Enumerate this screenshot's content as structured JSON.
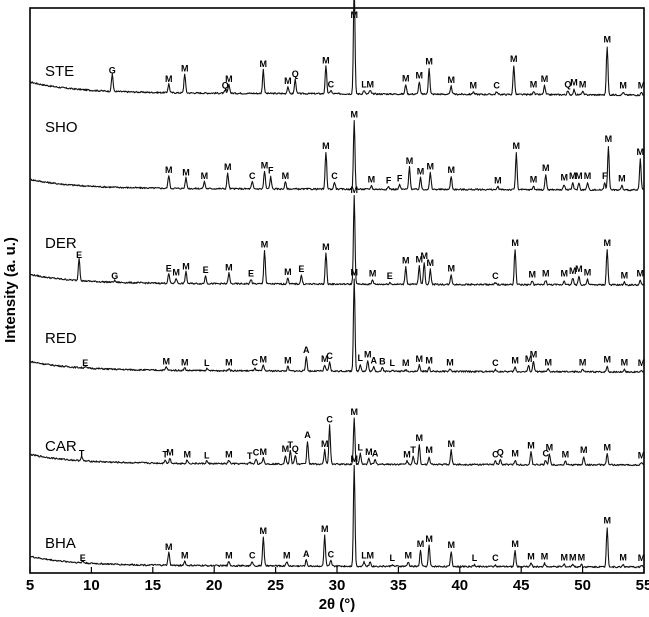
{
  "chart_data": {
    "type": "line",
    "xlabel": "2θ (°)",
    "ylabel": "Intensity (a. u.)",
    "xlim": [
      5,
      55
    ],
    "x_ticks": [
      5,
      10,
      15,
      20,
      25,
      30,
      35,
      40,
      45,
      50,
      55
    ],
    "grid": false,
    "legend": "none",
    "series": [
      {
        "name": "STE",
        "baseline": 0.12,
        "tilt": 0.07,
        "peaks": [
          {
            "x": 11.7,
            "h": 0.2,
            "label": "G"
          },
          {
            "x": 16.3,
            "h": 0.1,
            "label": "M"
          },
          {
            "x": 17.6,
            "h": 0.22,
            "label": "M"
          },
          {
            "x": 20.9,
            "h": 0.03,
            "label": "Q"
          },
          {
            "x": 21.2,
            "h": 0.1,
            "label": "M"
          },
          {
            "x": 24.0,
            "h": 0.27,
            "label": "M"
          },
          {
            "x": 26.0,
            "h": 0.08,
            "label": "M"
          },
          {
            "x": 26.6,
            "h": 0.16,
            "label": "Q"
          },
          {
            "x": 29.1,
            "h": 0.31,
            "label": "M"
          },
          {
            "x": 29.5,
            "h": 0.04,
            "label": "C"
          },
          {
            "x": 31.4,
            "h": 1.25,
            "label": "M"
          },
          {
            "x": 32.2,
            "h": 0.04,
            "label": "L"
          },
          {
            "x": 32.7,
            "h": 0.04,
            "label": "M"
          },
          {
            "x": 35.6,
            "h": 0.11,
            "label": "M"
          },
          {
            "x": 36.7,
            "h": 0.14,
            "label": "M"
          },
          {
            "x": 37.5,
            "h": 0.3,
            "label": "M"
          },
          {
            "x": 39.3,
            "h": 0.09,
            "label": "M"
          },
          {
            "x": 41.1,
            "h": 0.03,
            "label": "M"
          },
          {
            "x": 43.0,
            "h": 0.03,
            "label": "C"
          },
          {
            "x": 44.4,
            "h": 0.33,
            "label": "M"
          },
          {
            "x": 46.0,
            "h": 0.04,
            "label": "M"
          },
          {
            "x": 46.9,
            "h": 0.1,
            "label": "M"
          },
          {
            "x": 48.8,
            "h": 0.04,
            "label": "Q"
          },
          {
            "x": 49.3,
            "h": 0.06,
            "label": "M"
          },
          {
            "x": 50.0,
            "h": 0.04,
            "label": "M"
          },
          {
            "x": 52.0,
            "h": 0.55,
            "label": "M"
          },
          {
            "x": 53.3,
            "h": 0.03,
            "label": "M"
          },
          {
            "x": 54.8,
            "h": 0.03,
            "label": "M"
          }
        ]
      },
      {
        "name": "SHO",
        "baseline": 0.1,
        "tilt": 0.05,
        "peaks": [
          {
            "x": 16.3,
            "h": 0.15,
            "label": "M"
          },
          {
            "x": 17.7,
            "h": 0.12,
            "label": "M"
          },
          {
            "x": 19.2,
            "h": 0.08,
            "label": "M"
          },
          {
            "x": 21.1,
            "h": 0.18,
            "label": "M"
          },
          {
            "x": 23.1,
            "h": 0.08,
            "label": "C"
          },
          {
            "x": 24.1,
            "h": 0.2,
            "label": "M"
          },
          {
            "x": 24.6,
            "h": 0.14,
            "label": "F"
          },
          {
            "x": 25.8,
            "h": 0.08,
            "label": "M"
          },
          {
            "x": 29.1,
            "h": 0.42,
            "label": "M"
          },
          {
            "x": 29.8,
            "h": 0.08,
            "label": "C"
          },
          {
            "x": 31.4,
            "h": 0.78,
            "label": "M"
          },
          {
            "x": 32.8,
            "h": 0.04,
            "label": "M"
          },
          {
            "x": 34.2,
            "h": 0.03,
            "label": "F"
          },
          {
            "x": 35.1,
            "h": 0.05,
            "label": "F"
          },
          {
            "x": 35.9,
            "h": 0.25,
            "label": "M"
          },
          {
            "x": 36.8,
            "h": 0.13,
            "label": "M"
          },
          {
            "x": 37.6,
            "h": 0.19,
            "label": "M"
          },
          {
            "x": 39.3,
            "h": 0.15,
            "label": "M"
          },
          {
            "x": 43.1,
            "h": 0.03,
            "label": "M"
          },
          {
            "x": 44.6,
            "h": 0.42,
            "label": "M"
          },
          {
            "x": 46.0,
            "h": 0.04,
            "label": "M"
          },
          {
            "x": 47.0,
            "h": 0.17,
            "label": "M"
          },
          {
            "x": 48.5,
            "h": 0.06,
            "label": "M"
          },
          {
            "x": 49.2,
            "h": 0.08,
            "label": "M"
          },
          {
            "x": 49.7,
            "h": 0.08,
            "label": "M"
          },
          {
            "x": 50.4,
            "h": 0.08,
            "label": "M"
          },
          {
            "x": 51.8,
            "h": 0.08,
            "label": "F"
          },
          {
            "x": 52.1,
            "h": 0.5,
            "label": "M"
          },
          {
            "x": 53.2,
            "h": 0.05,
            "label": "M"
          },
          {
            "x": 54.7,
            "h": 0.35,
            "label": "M"
          }
        ]
      },
      {
        "name": "DER",
        "baseline": 0.1,
        "tilt": 0.05,
        "peaks": [
          {
            "x": 9.0,
            "h": 0.26,
            "label": "E"
          },
          {
            "x": 11.9,
            "h": 0.02,
            "label": "G"
          },
          {
            "x": 16.3,
            "h": 0.11,
            "label": "E"
          },
          {
            "x": 16.9,
            "h": 0.06,
            "label": "M"
          },
          {
            "x": 17.7,
            "h": 0.13,
            "label": "M"
          },
          {
            "x": 19.3,
            "h": 0.09,
            "label": "E"
          },
          {
            "x": 21.2,
            "h": 0.12,
            "label": "M"
          },
          {
            "x": 23.0,
            "h": 0.05,
            "label": "E"
          },
          {
            "x": 24.1,
            "h": 0.38,
            "label": "M"
          },
          {
            "x": 26.0,
            "h": 0.07,
            "label": "M"
          },
          {
            "x": 27.1,
            "h": 0.1,
            "label": "E"
          },
          {
            "x": 29.1,
            "h": 0.35,
            "label": "M"
          },
          {
            "x": 31.4,
            "h": 1.0,
            "label": "M"
          },
          {
            "x": 32.9,
            "h": 0.05,
            "label": "M"
          },
          {
            "x": 34.3,
            "h": 0.02,
            "label": "E"
          },
          {
            "x": 35.6,
            "h": 0.2,
            "label": "M"
          },
          {
            "x": 36.7,
            "h": 0.21,
            "label": "M"
          },
          {
            "x": 37.1,
            "h": 0.25,
            "label": "M"
          },
          {
            "x": 37.6,
            "h": 0.17,
            "label": "M"
          },
          {
            "x": 39.3,
            "h": 0.11,
            "label": "M"
          },
          {
            "x": 42.9,
            "h": 0.02,
            "label": "C"
          },
          {
            "x": 44.5,
            "h": 0.4,
            "label": "M"
          },
          {
            "x": 45.9,
            "h": 0.04,
            "label": "M"
          },
          {
            "x": 47.0,
            "h": 0.05,
            "label": "M"
          },
          {
            "x": 48.5,
            "h": 0.05,
            "label": "M"
          },
          {
            "x": 49.2,
            "h": 0.08,
            "label": "M"
          },
          {
            "x": 49.7,
            "h": 0.1,
            "label": "M"
          },
          {
            "x": 50.4,
            "h": 0.06,
            "label": "M"
          },
          {
            "x": 52.0,
            "h": 0.4,
            "label": "M"
          },
          {
            "x": 53.4,
            "h": 0.03,
            "label": "M"
          },
          {
            "x": 54.7,
            "h": 0.05,
            "label": "M"
          }
        ]
      },
      {
        "name": "RED",
        "baseline": 0.1,
        "tilt": 0.05,
        "peaks": [
          {
            "x": 9.5,
            "h": 0.02,
            "label": "E"
          },
          {
            "x": 16.1,
            "h": 0.04,
            "label": "M"
          },
          {
            "x": 17.6,
            "h": 0.03,
            "label": "M"
          },
          {
            "x": 19.4,
            "h": 0.02,
            "label": "L"
          },
          {
            "x": 21.2,
            "h": 0.03,
            "label": "M"
          },
          {
            "x": 23.3,
            "h": 0.03,
            "label": "C"
          },
          {
            "x": 24.0,
            "h": 0.06,
            "label": "M"
          },
          {
            "x": 26.0,
            "h": 0.05,
            "label": "M"
          },
          {
            "x": 27.5,
            "h": 0.17,
            "label": "A"
          },
          {
            "x": 29.0,
            "h": 0.07,
            "label": "M"
          },
          {
            "x": 29.4,
            "h": 0.1,
            "label": "C"
          },
          {
            "x": 31.4,
            "h": 1.05,
            "label": "M"
          },
          {
            "x": 31.9,
            "h": 0.08,
            "label": "L"
          },
          {
            "x": 32.5,
            "h": 0.12,
            "label": "M"
          },
          {
            "x": 33.0,
            "h": 0.05,
            "label": "A"
          },
          {
            "x": 33.7,
            "h": 0.04,
            "label": "B"
          },
          {
            "x": 34.5,
            "h": 0.02,
            "label": "L"
          },
          {
            "x": 35.6,
            "h": 0.02,
            "label": "M"
          },
          {
            "x": 36.7,
            "h": 0.07,
            "label": "M"
          },
          {
            "x": 37.5,
            "h": 0.05,
            "label": "M"
          },
          {
            "x": 39.2,
            "h": 0.03,
            "label": "M"
          },
          {
            "x": 42.9,
            "h": 0.02,
            "label": "C"
          },
          {
            "x": 44.5,
            "h": 0.05,
            "label": "M"
          },
          {
            "x": 45.6,
            "h": 0.07,
            "label": "M"
          },
          {
            "x": 46.0,
            "h": 0.12,
            "label": "M"
          },
          {
            "x": 47.2,
            "h": 0.03,
            "label": "M"
          },
          {
            "x": 50.0,
            "h": 0.03,
            "label": "M"
          },
          {
            "x": 52.0,
            "h": 0.06,
            "label": "M"
          },
          {
            "x": 53.4,
            "h": 0.03,
            "label": "M"
          },
          {
            "x": 54.8,
            "h": 0.02,
            "label": "M"
          }
        ]
      },
      {
        "name": "CAR",
        "baseline": 0.1,
        "tilt": 0.05,
        "peaks": [
          {
            "x": 9.2,
            "h": 0.05,
            "label": "T"
          },
          {
            "x": 16.0,
            "h": 0.04,
            "label": "T"
          },
          {
            "x": 16.4,
            "h": 0.06,
            "label": "M"
          },
          {
            "x": 17.8,
            "h": 0.04,
            "label": "M"
          },
          {
            "x": 19.4,
            "h": 0.03,
            "label": "L"
          },
          {
            "x": 21.2,
            "h": 0.04,
            "label": "M"
          },
          {
            "x": 22.9,
            "h": 0.02,
            "label": "T"
          },
          {
            "x": 23.4,
            "h": 0.06,
            "label": "C"
          },
          {
            "x": 24.0,
            "h": 0.07,
            "label": "M"
          },
          {
            "x": 25.8,
            "h": 0.1,
            "label": "M"
          },
          {
            "x": 26.2,
            "h": 0.15,
            "label": "T"
          },
          {
            "x": 26.6,
            "h": 0.1,
            "label": "Q"
          },
          {
            "x": 27.6,
            "h": 0.26,
            "label": "A"
          },
          {
            "x": 29.0,
            "h": 0.16,
            "label": "M"
          },
          {
            "x": 29.4,
            "h": 0.44,
            "label": "C"
          },
          {
            "x": 31.4,
            "h": 0.52,
            "label": "M"
          },
          {
            "x": 31.9,
            "h": 0.12,
            "label": "L"
          },
          {
            "x": 32.6,
            "h": 0.07,
            "label": "M"
          },
          {
            "x": 33.1,
            "h": 0.05,
            "label": "A"
          },
          {
            "x": 35.7,
            "h": 0.04,
            "label": "M"
          },
          {
            "x": 36.2,
            "h": 0.09,
            "label": "T"
          },
          {
            "x": 36.7,
            "h": 0.23,
            "label": "M"
          },
          {
            "x": 37.5,
            "h": 0.09,
            "label": "M"
          },
          {
            "x": 39.3,
            "h": 0.16,
            "label": "M"
          },
          {
            "x": 42.9,
            "h": 0.04,
            "label": "C"
          },
          {
            "x": 43.3,
            "h": 0.06,
            "label": "Q"
          },
          {
            "x": 44.5,
            "h": 0.05,
            "label": "M"
          },
          {
            "x": 45.8,
            "h": 0.14,
            "label": "M"
          },
          {
            "x": 47.0,
            "h": 0.05,
            "label": "C"
          },
          {
            "x": 47.3,
            "h": 0.12,
            "label": "M"
          },
          {
            "x": 48.6,
            "h": 0.04,
            "label": "M"
          },
          {
            "x": 50.1,
            "h": 0.09,
            "label": "M"
          },
          {
            "x": 52.0,
            "h": 0.12,
            "label": "M"
          },
          {
            "x": 54.8,
            "h": 0.03,
            "label": "M"
          }
        ]
      },
      {
        "name": "BHA",
        "baseline": 0.1,
        "tilt": 0.05,
        "peaks": [
          {
            "x": 9.3,
            "h": 0.02,
            "label": "E"
          },
          {
            "x": 16.3,
            "h": 0.15,
            "label": "M"
          },
          {
            "x": 17.6,
            "h": 0.05,
            "label": "M"
          },
          {
            "x": 21.2,
            "h": 0.05,
            "label": "M"
          },
          {
            "x": 23.1,
            "h": 0.05,
            "label": "C"
          },
          {
            "x": 24.0,
            "h": 0.33,
            "label": "M"
          },
          {
            "x": 25.9,
            "h": 0.05,
            "label": "M"
          },
          {
            "x": 27.5,
            "h": 0.07,
            "label": "A"
          },
          {
            "x": 29.0,
            "h": 0.35,
            "label": "M"
          },
          {
            "x": 29.5,
            "h": 0.06,
            "label": "C"
          },
          {
            "x": 31.4,
            "h": 1.15,
            "label": "M"
          },
          {
            "x": 32.2,
            "h": 0.05,
            "label": "L"
          },
          {
            "x": 32.7,
            "h": 0.05,
            "label": "M"
          },
          {
            "x": 34.5,
            "h": 0.02,
            "label": "L"
          },
          {
            "x": 35.8,
            "h": 0.05,
            "label": "M"
          },
          {
            "x": 36.8,
            "h": 0.18,
            "label": "M"
          },
          {
            "x": 37.5,
            "h": 0.24,
            "label": "M"
          },
          {
            "x": 39.3,
            "h": 0.17,
            "label": "M"
          },
          {
            "x": 41.2,
            "h": 0.02,
            "label": "L"
          },
          {
            "x": 42.9,
            "h": 0.02,
            "label": "C"
          },
          {
            "x": 44.5,
            "h": 0.18,
            "label": "M"
          },
          {
            "x": 45.8,
            "h": 0.04,
            "label": "M"
          },
          {
            "x": 46.9,
            "h": 0.04,
            "label": "M"
          },
          {
            "x": 48.5,
            "h": 0.03,
            "label": "M"
          },
          {
            "x": 49.2,
            "h": 0.03,
            "label": "M"
          },
          {
            "x": 49.9,
            "h": 0.03,
            "label": "M"
          },
          {
            "x": 52.0,
            "h": 0.45,
            "label": "M"
          },
          {
            "x": 53.3,
            "h": 0.03,
            "label": "M"
          },
          {
            "x": 54.8,
            "h": 0.02,
            "label": "M"
          }
        ]
      }
    ]
  }
}
